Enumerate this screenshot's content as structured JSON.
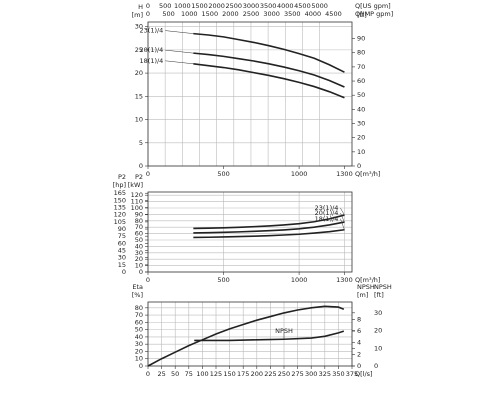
{
  "chart_data": [
    {
      "type": "line",
      "xlabel": "Q[m³/h]",
      "xlim": [
        0,
        1350
      ],
      "xticks": [
        0,
        500,
        1000,
        1300
      ],
      "vgrid": "top",
      "series_labels": "start",
      "top_axes": [
        {
          "label": "Q[US gpm]",
          "lim": [
            0,
            5944
          ],
          "ticks": [
            0,
            500,
            1000,
            1500,
            2000,
            2500,
            3000,
            3500,
            4000,
            4500,
            5000
          ]
        },
        {
          "label": "Q[IMP gpm]",
          "lim": [
            0,
            4950
          ],
          "ticks": [
            0,
            500,
            1000,
            1500,
            2000,
            2500,
            3000,
            3500,
            4000,
            4500
          ]
        }
      ],
      "y_axes": [
        {
          "side": "left",
          "title": "H",
          "unit": "[m]",
          "lim": [
            0,
            31
          ],
          "ticks": [
            0,
            5,
            10,
            15,
            20,
            25,
            30
          ]
        },
        {
          "side": "right",
          "unit": "[ft]",
          "lim": [
            0,
            101.7
          ],
          "ticks": [
            0,
            10,
            20,
            30,
            40,
            50,
            60,
            70,
            80,
            90
          ]
        }
      ],
      "series": [
        {
          "name": "23(1)/4",
          "color": "#222222",
          "x": [
            300,
            400,
            500,
            600,
            700,
            800,
            900,
            1000,
            1100,
            1200,
            1300
          ],
          "values": [
            28.5,
            28.2,
            27.8,
            27.2,
            26.6,
            25.9,
            25.1,
            24.2,
            23.2,
            21.8,
            20.2
          ]
        },
        {
          "name": "20(1)/4",
          "color": "#222222",
          "x": [
            300,
            400,
            500,
            600,
            700,
            800,
            900,
            1000,
            1100,
            1200,
            1300
          ],
          "values": [
            24.3,
            24.0,
            23.6,
            23.1,
            22.6,
            22.0,
            21.3,
            20.5,
            19.6,
            18.4,
            17.0
          ]
        },
        {
          "name": "18(1)/4",
          "color": "#222222",
          "x": [
            300,
            400,
            500,
            600,
            700,
            800,
            900,
            1000,
            1100,
            1200,
            1300
          ],
          "values": [
            22.0,
            21.6,
            21.2,
            20.7,
            20.1,
            19.5,
            18.8,
            18.0,
            17.1,
            16.0,
            14.7
          ]
        }
      ]
    },
    {
      "type": "line",
      "xlabel": "Q[m³/h]",
      "xlim": [
        0,
        1350
      ],
      "xticks": [
        0,
        500,
        1000,
        1300
      ],
      "vgrid": "bottom",
      "series_labels": "end",
      "y_axes": [
        {
          "side": "left",
          "title": "P2",
          "unit": "[kW]",
          "lim": [
            0,
            125
          ],
          "ticks": [
            0,
            10,
            20,
            30,
            40,
            50,
            60,
            70,
            80,
            90,
            100,
            110,
            120
          ]
        },
        {
          "side": "left",
          "title": "P2",
          "unit": "[hp]",
          "lim": [
            0,
            167.6
          ],
          "ticks": [
            0,
            15,
            30,
            45,
            60,
            75,
            90,
            105,
            120,
            135,
            150,
            165
          ]
        }
      ],
      "series": [
        {
          "name": "23(1)/4",
          "color": "#222222",
          "x": [
            300,
            400,
            500,
            600,
            700,
            800,
            900,
            1000,
            1100,
            1200,
            1300
          ],
          "values": [
            68,
            68.5,
            69,
            69.8,
            70.8,
            72,
            73.5,
            75.5,
            78.5,
            83,
            89
          ]
        },
        {
          "name": "20(1)/4",
          "color": "#222222",
          "x": [
            300,
            400,
            500,
            600,
            700,
            800,
            900,
            1000,
            1100,
            1200,
            1300
          ],
          "values": [
            61,
            61.4,
            62,
            62.7,
            63.5,
            64.5,
            65.8,
            67.5,
            70,
            73.5,
            78
          ]
        },
        {
          "name": "18(1)/4",
          "color": "#222222",
          "x": [
            300,
            400,
            500,
            600,
            700,
            800,
            900,
            1000,
            1100,
            1200,
            1300
          ],
          "values": [
            54,
            54.3,
            54.8,
            55.4,
            56,
            56.8,
            57.8,
            59,
            60.8,
            63,
            66
          ]
        }
      ]
    },
    {
      "type": "line",
      "xlabel": "Q[l/s]",
      "xlim": [
        0,
        375
      ],
      "xticks": [
        0,
        25,
        50,
        75,
        100,
        125,
        150,
        175,
        200,
        225,
        250,
        275,
        300,
        325,
        350,
        375
      ],
      "vgrid": "bottom",
      "series_labels": "middle",
      "y_axes": [
        {
          "side": "left",
          "title": "Eta",
          "unit": "[%]",
          "lim": [
            0,
            88
          ],
          "ticks": [
            0,
            10,
            20,
            30,
            40,
            50,
            60,
            70,
            80
          ]
        },
        {
          "side": "right",
          "title": "NPSH",
          "unit": "[m]",
          "lim": [
            0,
            11
          ],
          "ticks": [
            0,
            2,
            4,
            6,
            8
          ]
        },
        {
          "side": "right",
          "title": "NPSH",
          "unit": "[ft]",
          "lim": [
            0,
            36.1
          ],
          "ticks": [
            0,
            10,
            20,
            30
          ]
        }
      ],
      "series": [
        {
          "color": "#222222",
          "x": [
            0,
            25,
            50,
            75,
            100,
            125,
            150,
            175,
            200,
            225,
            250,
            275,
            300,
            325,
            350,
            360
          ],
          "values": [
            0,
            10,
            19,
            28,
            36,
            44,
            51,
            57,
            63,
            68,
            73,
            77,
            80,
            82,
            81,
            78
          ]
        },
        {
          "name": "NPSH",
          "color": "#222222",
          "axis": 1,
          "x": [
            85,
            100,
            150,
            200,
            250,
            300,
            325,
            350,
            360
          ],
          "values": [
            4.4,
            4.4,
            4.4,
            4.5,
            4.6,
            4.8,
            5.1,
            5.7,
            6.0
          ]
        }
      ]
    }
  ]
}
